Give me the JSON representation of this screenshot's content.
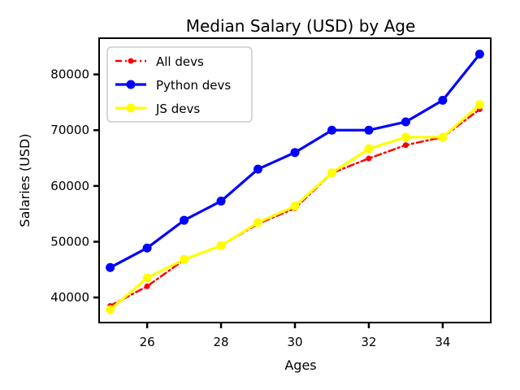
{
  "chart_data": {
    "type": "line",
    "title": "Median Salary (USD) by Age",
    "xlabel": "Ages",
    "ylabel": "Salaries (USD)",
    "xlim": [
      24.7,
      35.3
    ],
    "ylim": [
      35500,
      86500
    ],
    "x_ticks": [
      26,
      28,
      30,
      32,
      34
    ],
    "y_ticks": [
      40000,
      50000,
      60000,
      70000,
      80000
    ],
    "grid": false,
    "legend_position": "top-left",
    "x": [
      25,
      26,
      27,
      28,
      29,
      30,
      31,
      32,
      33,
      34,
      35
    ],
    "series": [
      {
        "name": "All devs",
        "color": "#ff0000",
        "line_style": "dash-dot",
        "marker": "dot",
        "values": [
          38496,
          42000,
          46752,
          49320,
          53200,
          56000,
          62316,
          64928,
          67317,
          68748,
          73752
        ]
      },
      {
        "name": "Python devs",
        "color": "#0000ff",
        "line_style": "solid",
        "marker": "circle",
        "values": [
          45372,
          48876,
          53850,
          57287,
          63016,
          65998,
          70003,
          70000,
          71496,
          75370,
          83640
        ]
      },
      {
        "name": "JS devs",
        "color": "#ffff00",
        "line_style": "solid",
        "marker": "circle",
        "values": [
          37810,
          43515,
          46823,
          49293,
          53437,
          56373,
          62375,
          66674,
          68745,
          68746,
          74583
        ]
      }
    ]
  }
}
